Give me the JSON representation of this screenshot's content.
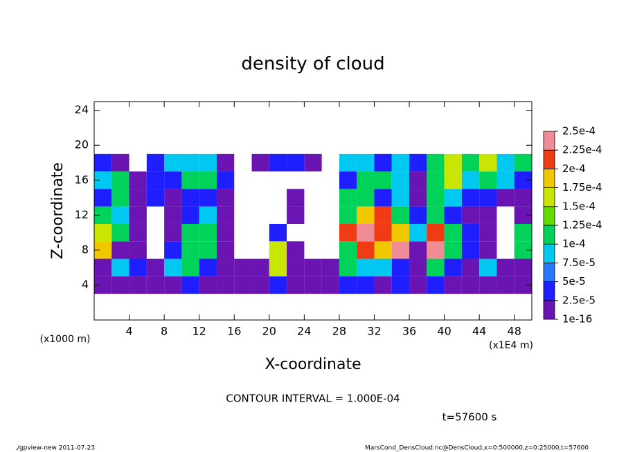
{
  "chart_data": {
    "type": "contour",
    "title": "density of cloud",
    "x_label": "X-coordinate",
    "y_label": "Z-coordinate",
    "x_unit": "(x1E4 m)",
    "y_unit": "(x1000 m)",
    "annotations": [
      "CONTOUR INTERVAL = 1.000E-04",
      "t=57600 s"
    ],
    "footer_left": "./gpview-new   2011-07-23",
    "footer_right": "MarsCond_DensCloud.nc@DensCloud,x=0:500000,z=0:25000,t=57600",
    "xlim": [
      0,
      50
    ],
    "ylim": [
      0,
      25
    ],
    "xticks": [
      4,
      8,
      12,
      16,
      20,
      24,
      28,
      32,
      36,
      40,
      44,
      48
    ],
    "yticks": [
      4,
      8,
      12,
      16,
      20,
      24
    ],
    "x": [
      1,
      3,
      5,
      7,
      9,
      11,
      13,
      15,
      17,
      19,
      21,
      23,
      25,
      27,
      29,
      31,
      33,
      35,
      37,
      39,
      41,
      43,
      45,
      47,
      49
    ],
    "y": [
      4,
      6,
      8,
      10,
      12,
      14,
      16,
      18
    ],
    "levels": [
      {
        "value": 1e-16,
        "label": "1e-16"
      },
      {
        "value": 2.5e-05,
        "label": "2.5e-5"
      },
      {
        "value": 5e-05,
        "label": "5e-5"
      },
      {
        "value": 7.5e-05,
        "label": "7.5e-5"
      },
      {
        "value": 0.0001,
        "label": "1e-4"
      },
      {
        "value": 0.000125,
        "label": "1.25e-4"
      },
      {
        "value": 0.00015,
        "label": "1.5e-4"
      },
      {
        "value": 0.000175,
        "label": "1.75e-4"
      },
      {
        "value": 0.0002,
        "label": "2e-4"
      },
      {
        "value": 0.000225,
        "label": "2.25e-4"
      },
      {
        "value": 0.00025,
        "label": "2.5e-4"
      }
    ],
    "colors": [
      "#6a14b4",
      "#1e1eff",
      "#2878ff",
      "#00c8f0",
      "#00d25a",
      "#64dc00",
      "#c8e600",
      "#f0c800",
      "#f03c14",
      "#f08c96"
    ],
    "values": [
      [
        1e-05,
        1e-05,
        1e-05,
        1e-05,
        1e-05,
        4e-05,
        1e-05,
        1e-05,
        1e-05,
        1e-05,
        4e-05,
        1e-05,
        1e-05,
        1e-05,
        4e-05,
        4e-05,
        1e-05,
        4e-05,
        1e-05,
        4e-05,
        1e-05,
        1e-05,
        1e-05,
        1e-05,
        1e-05
      ],
      [
        1e-05,
        9e-05,
        4e-05,
        1e-05,
        9e-05,
        0.00011,
        4e-05,
        1e-05,
        1e-05,
        1e-05,
        0.00016,
        1e-05,
        1e-05,
        1e-05,
        0.00011,
        9e-05,
        9e-05,
        4e-05,
        1e-05,
        0.00011,
        4e-05,
        1e-05,
        9e-05,
        1e-05,
        1e-05
      ],
      [
        0.00019,
        1e-05,
        1e-05,
        null,
        4e-05,
        0.00011,
        0.00011,
        1e-05,
        null,
        null,
        0.00016,
        1e-05,
        null,
        null,
        0.00011,
        0.00022,
        0.00019,
        0.00024,
        1e-05,
        0.00024,
        0.00011,
        4e-05,
        1e-05,
        null,
        0.00011
      ],
      [
        0.00016,
        0.00011,
        1e-05,
        null,
        1e-05,
        0.00011,
        0.00011,
        1e-05,
        null,
        null,
        4e-05,
        null,
        null,
        null,
        0.00022,
        0.00024,
        0.00022,
        0.00019,
        9e-05,
        0.00022,
        0.00011,
        4e-05,
        1e-05,
        null,
        0.00011
      ],
      [
        0.00011,
        9e-05,
        1e-05,
        null,
        1e-05,
        4e-05,
        9e-05,
        1e-05,
        null,
        null,
        null,
        1e-05,
        null,
        null,
        0.00011,
        0.00019,
        0.00022,
        0.00011,
        4e-05,
        0.00011,
        4e-05,
        1e-05,
        1e-05,
        null,
        1e-05
      ],
      [
        4e-05,
        0.00011,
        1e-05,
        4e-05,
        1e-05,
        4e-05,
        4e-05,
        1e-05,
        null,
        null,
        null,
        1e-05,
        null,
        null,
        0.00011,
        0.00011,
        4e-05,
        9e-05,
        1e-05,
        0.00011,
        9e-05,
        4e-05,
        4e-05,
        1e-05,
        1e-05
      ],
      [
        9e-05,
        0.00011,
        1e-05,
        4e-05,
        4e-05,
        0.00011,
        0.00011,
        4e-05,
        null,
        null,
        null,
        null,
        null,
        null,
        4e-05,
        0.00011,
        0.00011,
        9e-05,
        1e-05,
        0.00011,
        0.00016,
        9e-05,
        0.00011,
        9e-05,
        4e-05
      ],
      [
        4e-05,
        1e-05,
        null,
        4e-05,
        9e-05,
        9e-05,
        9e-05,
        1e-05,
        null,
        1e-05,
        4e-05,
        4e-05,
        1e-05,
        null,
        9e-05,
        9e-05,
        4e-05,
        9e-05,
        4e-05,
        0.00011,
        0.00016,
        0.00011,
        0.00016,
        9e-05,
        0.00011
      ]
    ]
  }
}
